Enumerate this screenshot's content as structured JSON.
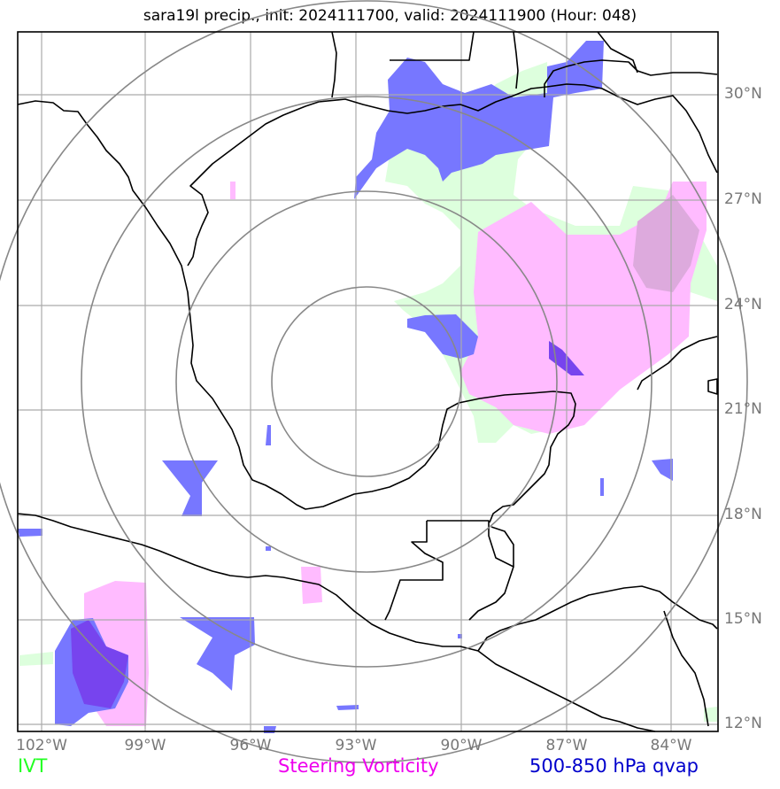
{
  "title": "sara19l precip., init: 2024111700, valid: 2024111900 (Hour: 048)",
  "latitude_labels": [
    "30°N",
    "27°N",
    "24°N",
    "21°N",
    "18°N",
    "15°N",
    "12°N"
  ],
  "longitude_labels": [
    "102°W",
    "99°W",
    "96°W",
    "93°W",
    "90°W",
    "87°W",
    "84°W"
  ],
  "legend": {
    "ivt": {
      "label": "IVT",
      "color": "#22ff22"
    },
    "vorticity": {
      "label": "Steering Vorticity",
      "color": "#ee00ee"
    },
    "qvap": {
      "label": "500-850 hPa qvap",
      "color": "#0000cc"
    }
  },
  "colors": {
    "ivt_fill": "#ddffdd",
    "vorticity_fill": "#ffbbff",
    "qvap_fill": "#7777ff",
    "qvap_dark_fill": "#7744ee",
    "gridlines": "#aaaaaa",
    "range_rings": "#888888",
    "coastlines": "#000000"
  }
}
